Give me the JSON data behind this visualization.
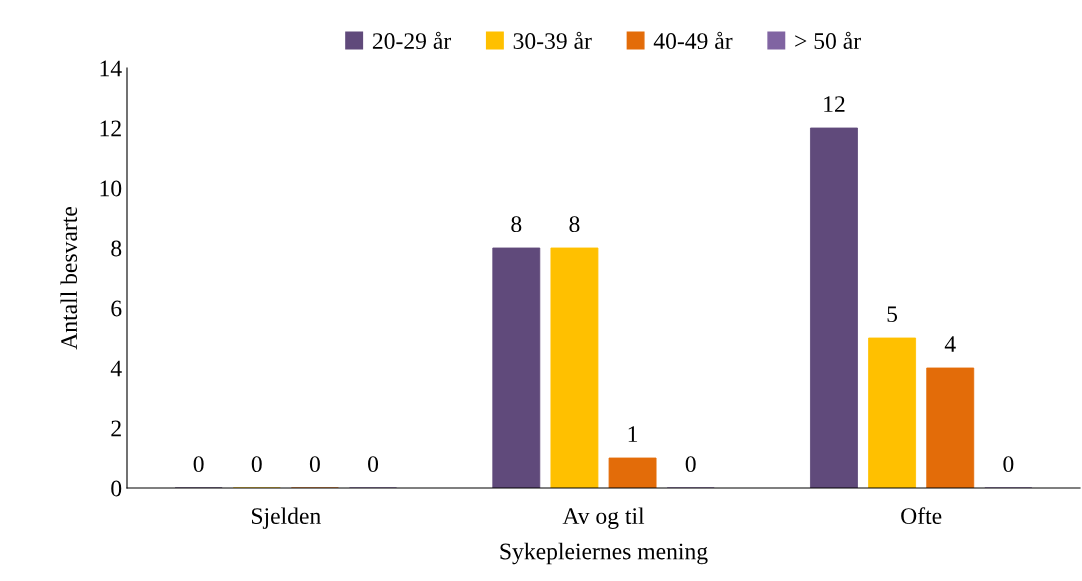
{
  "chart_data": {
    "type": "bar",
    "xlabel": "Sykepleiernes mening",
    "ylabel": "Antall besvarte",
    "categories": [
      "Sjelden",
      "Av og til",
      "Ofte"
    ],
    "series": [
      {
        "name": "20-29 år",
        "color": "#604a7b",
        "values": [
          0,
          8,
          12
        ]
      },
      {
        "name": "30-39 år",
        "color": "#ffc000",
        "values": [
          0,
          8,
          5
        ]
      },
      {
        "name": "40-49 år",
        "color": "#e36c09",
        "values": [
          0,
          1,
          4
        ]
      },
      {
        "name": "> 50 år",
        "color": "#8064a2",
        "values": [
          0,
          0,
          0
        ]
      }
    ],
    "ylim": [
      0,
      14
    ],
    "yticks": [
      0,
      2,
      4,
      6,
      8,
      10,
      12,
      14
    ],
    "data_labels": true,
    "grid": false,
    "legend": "top"
  }
}
